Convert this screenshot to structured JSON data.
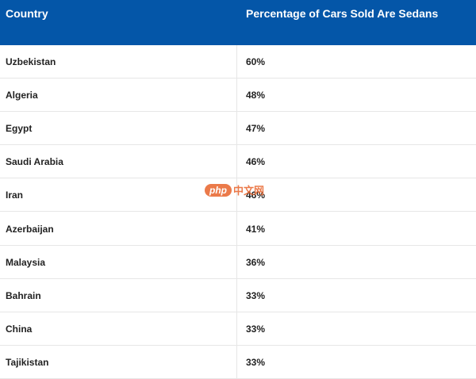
{
  "table": {
    "header": [
      "Country",
      "Percentage of Cars Sold Are Sedans"
    ],
    "rows": [
      [
        "Uzbekistan",
        "60%"
      ],
      [
        "Algeria",
        "48%"
      ],
      [
        "Egypt",
        "47%"
      ],
      [
        "Saudi Arabia",
        "46%"
      ],
      [
        "Iran",
        "46%"
      ],
      [
        "Azerbaijan",
        "41%"
      ],
      [
        "Malaysia",
        "36%"
      ],
      [
        "Bahrain",
        "33%"
      ],
      [
        "China",
        "33%"
      ],
      [
        "Tajikistan",
        "33%"
      ]
    ]
  },
  "watermark": {
    "badge": "php",
    "text": "中文网"
  }
}
